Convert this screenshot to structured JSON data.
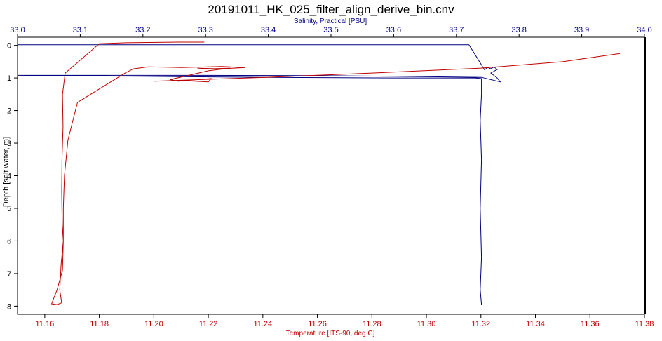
{
  "chart_data": {
    "type": "line",
    "title": "20191011_HK_025_filter_align_derive_bin.cnv",
    "y_axis": {
      "label": "Depth [salt water, m]",
      "range": [
        -0.25,
        8.25
      ],
      "inverted": true,
      "ticks": [
        0,
        1,
        2,
        3,
        4,
        5,
        6,
        7,
        8
      ],
      "tick_labels": [
        "0",
        "1",
        "2",
        "3",
        "4",
        "5",
        "6",
        "7",
        "8"
      ],
      "color": "#000000"
    },
    "x_axis_top": {
      "label": "Salinity, Practical [PSU]",
      "range": [
        33.0,
        34.0
      ],
      "ticks": [
        33.0,
        33.1,
        33.2,
        33.3,
        33.4,
        33.5,
        33.6,
        33.7,
        33.8,
        33.9,
        34.0
      ],
      "tick_labels": [
        "33.0",
        "33.1",
        "33.2",
        "33.3",
        "33.4",
        "33.5",
        "33.6",
        "33.7",
        "33.8",
        "33.9",
        "34.0"
      ],
      "color": "#000080"
    },
    "x_axis_bottom": {
      "label": "Temperature [ITS-90, deg C]",
      "range": [
        11.15,
        11.38
      ],
      "ticks": [
        11.16,
        11.18,
        11.2,
        11.22,
        11.24,
        11.26,
        11.28,
        11.3,
        11.32,
        11.34,
        11.36,
        11.38
      ],
      "tick_labels": [
        "11.16",
        "11.18",
        "11.20",
        "11.22",
        "11.24",
        "11.26",
        "11.28",
        "11.30",
        "11.32",
        "11.34",
        "11.36",
        "11.38"
      ],
      "color": "#c00000"
    },
    "grid": false,
    "series": [
      {
        "axis": "top",
        "color": "#000080",
        "points": [
          [
            33.0,
            -0.02
          ],
          [
            33.72,
            -0.02
          ],
          [
            33.74,
            0.6
          ],
          [
            33.745,
            0.75
          ],
          [
            33.75,
            0.68
          ],
          [
            33.755,
            0.72
          ],
          [
            33.76,
            0.66
          ],
          [
            33.765,
            0.74
          ],
          [
            33.755,
            0.85
          ],
          [
            33.765,
            1.0
          ],
          [
            33.77,
            1.12
          ],
          [
            33.74,
            0.98
          ],
          [
            33.6,
            0.95
          ],
          [
            33.48,
            0.93
          ],
          [
            33.3,
            0.92
          ],
          [
            33.0,
            0.92
          ],
          [
            33.2,
            0.95
          ],
          [
            33.4,
            0.98
          ],
          [
            33.6,
            1.0
          ],
          [
            33.73,
            1.0
          ],
          [
            33.74,
            1.02
          ],
          [
            33.74,
            1.5
          ],
          [
            33.738,
            2.3
          ],
          [
            33.74,
            3.5
          ],
          [
            33.738,
            5.0
          ],
          [
            33.74,
            6.5
          ],
          [
            33.738,
            7.5
          ],
          [
            33.74,
            7.95
          ]
        ]
      },
      {
        "axis": "bottom",
        "color": "#c00000",
        "points": [
          [
            11.2185,
            -0.1
          ],
          [
            11.21,
            -0.1
          ],
          [
            11.19,
            -0.08
          ],
          [
            11.18,
            -0.05
          ],
          [
            11.1675,
            0.85
          ],
          [
            11.1665,
            1.5
          ],
          [
            11.1667,
            2.5
          ],
          [
            11.1663,
            3.5
          ],
          [
            11.1662,
            4.5
          ],
          [
            11.1664,
            5.5
          ],
          [
            11.1668,
            6.0
          ],
          [
            11.166,
            6.7
          ],
          [
            11.1655,
            7.5
          ],
          [
            11.1662,
            7.9
          ],
          [
            11.1645,
            7.95
          ],
          [
            11.1625,
            7.93
          ],
          [
            11.1645,
            7.5
          ],
          [
            11.1665,
            6.9
          ],
          [
            11.1668,
            6.0
          ],
          [
            11.1668,
            5.0
          ],
          [
            11.1672,
            4.0
          ],
          [
            11.1685,
            2.9
          ],
          [
            11.172,
            1.75
          ],
          [
            11.1895,
            0.85
          ],
          [
            11.1925,
            0.72
          ],
          [
            11.198,
            0.66
          ],
          [
            11.21,
            0.68
          ],
          [
            11.225,
            0.65
          ],
          [
            11.2335,
            0.68
          ],
          [
            11.2245,
            0.72
          ],
          [
            11.216,
            0.7
          ],
          [
            11.22,
            0.72
          ],
          [
            11.228,
            0.7
          ],
          [
            11.22,
            0.78
          ],
          [
            11.206,
            1.05
          ],
          [
            11.209,
            1.1
          ],
          [
            11.221,
            1.02
          ],
          [
            11.22,
            1.12
          ],
          [
            11.21,
            1.08
          ],
          [
            11.2,
            1.1
          ],
          [
            11.241,
            0.98
          ],
          [
            11.28,
            0.85
          ],
          [
            11.32,
            0.7
          ],
          [
            11.35,
            0.5
          ],
          [
            11.371,
            0.25
          ]
        ]
      }
    ]
  }
}
